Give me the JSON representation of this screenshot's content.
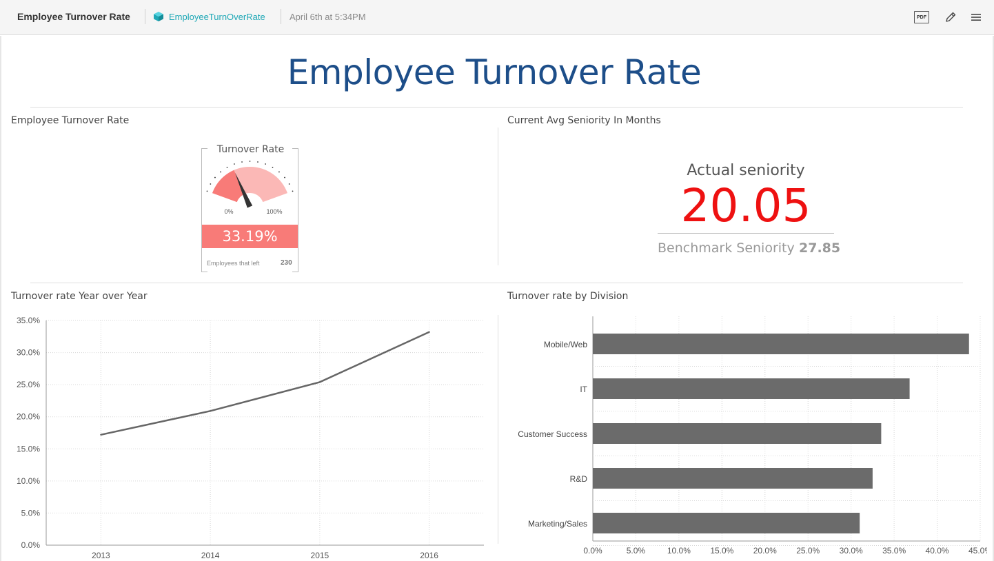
{
  "header": {
    "title": "Employee Turnover Rate",
    "datasource": "EmployeeTurnOverRate",
    "timestamp": "April 6th at 5:34PM",
    "icons": [
      "cube-icon",
      "pdf-icon",
      "pencil-icon",
      "hamburger-menu-icon"
    ],
    "pdf_label": "PDF"
  },
  "dashboard": {
    "title": "Employee Turnover Rate"
  },
  "widgets": {
    "gauge": {
      "widget_title": "Employee Turnover Rate",
      "title": "Turnover Rate",
      "min_label": "0%",
      "max_label": "100%",
      "value_label": "33.19%",
      "value": 33.19,
      "footer_label": "Employees that left",
      "footer_value": "230",
      "colors": {
        "fill": "#f87b78",
        "track": "#fbb8b6",
        "needle": "#333333"
      }
    },
    "kpi": {
      "widget_title": "Current Avg Seniority In Months",
      "label": "Actual seniority",
      "value": "20.05",
      "benchmark_label": "Benchmark Seniority",
      "benchmark_value": "27.85",
      "value_color": "#ee1111"
    },
    "line": {
      "widget_title": "Turnover rate Year over Year"
    },
    "bar": {
      "widget_title": "Turnover rate by Division"
    }
  },
  "chart_data": [
    {
      "type": "line",
      "x": [
        "2013",
        "2014",
        "2015",
        "2016"
      ],
      "series": [
        {
          "values": [
            17.2,
            20.9,
            25.4,
            33.2
          ]
        }
      ],
      "ylim": [
        0,
        35
      ],
      "yticks": [
        "0.0%",
        "5.0%",
        "10.0%",
        "15.0%",
        "20.0%",
        "25.0%",
        "30.0%",
        "35.0%"
      ],
      "grid": true,
      "color": "#666666"
    },
    {
      "type": "bar",
      "orientation": "horizontal",
      "categories": [
        "Mobile/Web",
        "IT",
        "Customer Success",
        "R&D",
        "Marketing/Sales"
      ],
      "values": [
        43.7,
        36.8,
        33.5,
        32.5,
        31.0
      ],
      "xlim": [
        0,
        45
      ],
      "xticks": [
        "0.0%",
        "5.0%",
        "10.0%",
        "15.0%",
        "20.0%",
        "25.0%",
        "30.0%",
        "35.0%",
        "40.0%",
        "45.0%"
      ],
      "grid": true,
      "color": "#6b6b6b"
    }
  ]
}
